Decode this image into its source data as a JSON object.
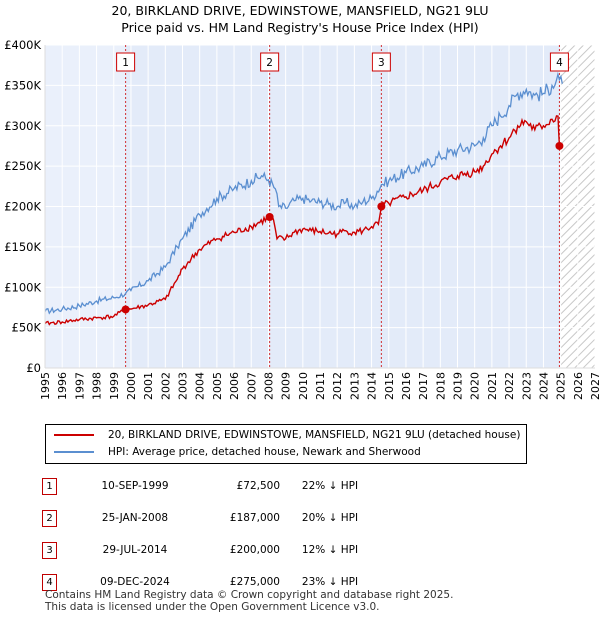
{
  "title": {
    "line1": "20, BIRKLAND DRIVE, EDWINSTOWE, MANSFIELD, NG21 9LU",
    "line2": "Price paid vs. HM Land Registry's House Price Index (HPI)"
  },
  "chart_data": {
    "type": "line",
    "x_range": [
      1995,
      2027
    ],
    "ylim": [
      0,
      400000
    ],
    "y_ticks": [
      {
        "value": 0,
        "label": "£0"
      },
      {
        "value": 50000,
        "label": "£50K"
      },
      {
        "value": 100000,
        "label": "£100K"
      },
      {
        "value": 150000,
        "label": "£150K"
      },
      {
        "value": 200000,
        "label": "£200K"
      },
      {
        "value": 250000,
        "label": "£250K"
      },
      {
        "value": 300000,
        "label": "£300K"
      },
      {
        "value": 350000,
        "label": "£350K"
      },
      {
        "value": 400000,
        "label": "£400K"
      }
    ],
    "x_ticks": [
      "1995",
      "1996",
      "1997",
      "1998",
      "1999",
      "2000",
      "2001",
      "2002",
      "2003",
      "2004",
      "2005",
      "2006",
      "2007",
      "2008",
      "2009",
      "2010",
      "2011",
      "2012",
      "2013",
      "2014",
      "2015",
      "2016",
      "2017",
      "2018",
      "2019",
      "2020",
      "2021",
      "2022",
      "2023",
      "2024",
      "2025",
      "2026",
      "2027"
    ],
    "hpi_anchors": [
      [
        1995.0,
        70000
      ],
      [
        1996.0,
        73000
      ],
      [
        1997.0,
        77000
      ],
      [
        1998.0,
        83000
      ],
      [
        1999.0,
        87000
      ],
      [
        1999.7,
        92700
      ],
      [
        2000.0,
        96000
      ],
      [
        2001.0,
        108000
      ],
      [
        2002.0,
        125000
      ],
      [
        2002.7,
        150000
      ],
      [
        2003.0,
        160000
      ],
      [
        2004.0,
        190000
      ],
      [
        2005.0,
        210000
      ],
      [
        2006.0,
        222000
      ],
      [
        2007.0,
        232000
      ],
      [
        2007.6,
        238000
      ],
      [
        2008.0,
        233000
      ],
      [
        2008.4,
        222000
      ],
      [
        2008.6,
        200000
      ],
      [
        2009.0,
        198000
      ],
      [
        2009.5,
        207000
      ],
      [
        2010.0,
        210000
      ],
      [
        2010.5,
        207000
      ],
      [
        2011.0,
        205000
      ],
      [
        2011.5,
        203000
      ],
      [
        2012.0,
        200000
      ],
      [
        2012.5,
        205000
      ],
      [
        2013.0,
        200000
      ],
      [
        2013.5,
        206000
      ],
      [
        2014.0,
        210000
      ],
      [
        2014.57,
        227000
      ],
      [
        2015.0,
        232000
      ],
      [
        2016.0,
        242000
      ],
      [
        2017.0,
        250000
      ],
      [
        2018.0,
        262000
      ],
      [
        2019.0,
        270000
      ],
      [
        2020.0,
        275000
      ],
      [
        2020.5,
        285000
      ],
      [
        2021.0,
        300000
      ],
      [
        2021.5,
        312000
      ],
      [
        2022.0,
        325000
      ],
      [
        2022.5,
        340000
      ],
      [
        2023.0,
        345000
      ],
      [
        2023.5,
        338000
      ],
      [
        2024.0,
        340000
      ],
      [
        2024.5,
        350000
      ],
      [
        2024.93,
        357000
      ],
      [
        2025.1,
        352000
      ]
    ],
    "price_anchors": [
      [
        1995.0,
        55000
      ],
      [
        1996.0,
        57000
      ],
      [
        1997.0,
        60000
      ],
      [
        1998.0,
        62000
      ],
      [
        1999.0,
        64000
      ],
      [
        1999.69,
        72500
      ],
      [
        2000.0,
        73000
      ],
      [
        2001.0,
        78000
      ],
      [
        2002.0,
        85000
      ],
      [
        2002.7,
        110000
      ],
      [
        2003.0,
        123000
      ],
      [
        2004.0,
        147000
      ],
      [
        2005.0,
        160000
      ],
      [
        2006.0,
        168000
      ],
      [
        2007.0,
        175000
      ],
      [
        2008.07,
        187000
      ],
      [
        2008.3,
        183000
      ],
      [
        2008.5,
        160000
      ],
      [
        2009.0,
        160000
      ],
      [
        2009.5,
        168000
      ],
      [
        2010.0,
        172000
      ],
      [
        2010.5,
        170000
      ],
      [
        2011.0,
        169000
      ],
      [
        2011.5,
        167000
      ],
      [
        2012.0,
        166000
      ],
      [
        2012.5,
        170000
      ],
      [
        2013.0,
        168000
      ],
      [
        2013.5,
        170000
      ],
      [
        2014.0,
        175000
      ],
      [
        2014.4,
        178000
      ],
      [
        2014.57,
        200000
      ],
      [
        2015.0,
        204000
      ],
      [
        2016.0,
        212000
      ],
      [
        2017.0,
        220000
      ],
      [
        2018.0,
        230000
      ],
      [
        2019.0,
        238000
      ],
      [
        2020.0,
        243000
      ],
      [
        2020.5,
        250000
      ],
      [
        2021.0,
        265000
      ],
      [
        2021.5,
        275000
      ],
      [
        2022.0,
        285000
      ],
      [
        2022.5,
        300000
      ],
      [
        2023.0,
        305000
      ],
      [
        2023.5,
        295000
      ],
      [
        2024.0,
        300000
      ],
      [
        2024.5,
        308000
      ],
      [
        2024.85,
        312000
      ],
      [
        2024.93,
        275000
      ],
      [
        2025.1,
        273000
      ]
    ],
    "sales": [
      {
        "n": "1",
        "x": 1999.69,
        "price": 72500
      },
      {
        "n": "2",
        "x": 2008.07,
        "price": 187000
      },
      {
        "n": "3",
        "x": 2014.57,
        "price": 200000
      },
      {
        "n": "4",
        "x": 2024.93,
        "price": 275000
      }
    ],
    "series": [
      {
        "name": "20, BIRKLAND DRIVE, EDWINSTOWE, MANSFIELD, NG21 9LU (detached house)",
        "color": "#cc0000"
      },
      {
        "name": "HPI: Average price, detached house, Newark and Sherwood",
        "color": "#5b8fd0"
      }
    ]
  },
  "legend": {
    "red_label": "20, BIRKLAND DRIVE, EDWINSTOWE, MANSFIELD, NG21 9LU (detached house)",
    "blue_label": "HPI: Average price, detached house, Newark and Sherwood"
  },
  "table": [
    {
      "n": "1",
      "date": "10-SEP-1999",
      "price": "£72,500",
      "hpi": "22% ↓ HPI"
    },
    {
      "n": "2",
      "date": "25-JAN-2008",
      "price": "£187,000",
      "hpi": "20% ↓ HPI"
    },
    {
      "n": "3",
      "date": "29-JUL-2014",
      "price": "£200,000",
      "hpi": "12% ↓ HPI"
    },
    {
      "n": "4",
      "date": "09-DEC-2024",
      "price": "£275,000",
      "hpi": "23% ↓ HPI"
    }
  ],
  "footer": {
    "line1": "Contains HM Land Registry data © Crown copyright and database right 2025.",
    "line2": "This data is licensed under the Open Government Licence v3.0."
  },
  "colors": {
    "red": "#cc0000",
    "blue": "#5b8fd0",
    "shade": "#eaf0fb",
    "grid": "#ffffff"
  }
}
